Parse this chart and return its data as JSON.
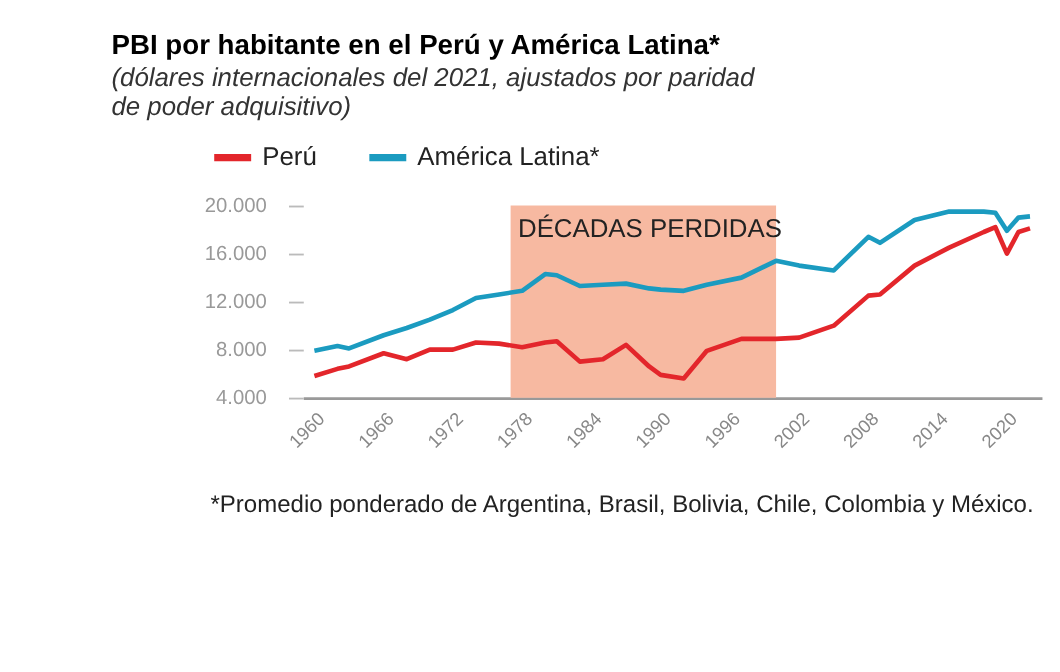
{
  "chart_data": {
    "type": "line",
    "title": "PBI por habitante en el Perú y América Latina*",
    "subtitle": [
      "(dólares internacionales del 2021, ajustados por paridad",
      "de poder adquisitivo)"
    ],
    "x": [
      1960,
      1962,
      1963,
      1966,
      1968,
      1970,
      1972,
      1974,
      1976,
      1978,
      1980,
      1981,
      1983,
      1985,
      1987,
      1989,
      1990,
      1992,
      1994,
      1997,
      2000,
      2002,
      2005,
      2008,
      2009,
      2012,
      2015,
      2018,
      2019,
      2020,
      2021,
      2022
    ],
    "series": [
      {
        "name": "Perú",
        "color": "#e3262b",
        "values": [
          5800,
          6400,
          6600,
          7700,
          7200,
          8000,
          8000,
          8600,
          8500,
          8200,
          8600,
          8700,
          7000,
          7200,
          8400,
          6600,
          5900,
          5600,
          7900,
          8900,
          8900,
          9000,
          10000,
          12500,
          12600,
          15000,
          16500,
          17800,
          18200,
          16000,
          17800,
          18100
        ]
      },
      {
        "name": "América Latina*",
        "color": "#1b9bc0",
        "values": [
          7900,
          8300,
          8100,
          9200,
          9800,
          10500,
          11300,
          12300,
          12600,
          12900,
          14300,
          14200,
          13300,
          13400,
          13500,
          13100,
          13000,
          12900,
          13400,
          14000,
          15400,
          15000,
          14600,
          17400,
          16900,
          18800,
          19500,
          19500,
          19400,
          17900,
          19000,
          19100
        ]
      }
    ],
    "xlim": [
      1959,
      2023
    ],
    "xticks": [
      1960,
      1966,
      1972,
      1978,
      1984,
      1990,
      1996,
      2002,
      2008,
      2014,
      2020
    ],
    "ylim": [
      4000,
      20000
    ],
    "yticks": [
      {
        "value": 4000,
        "label": "4.000"
      },
      {
        "value": 8000,
        "label": "8.000"
      },
      {
        "value": 12000,
        "label": "12.000"
      },
      {
        "value": 16000,
        "label": "16.000"
      },
      {
        "value": 20000,
        "label": "20.000"
      }
    ],
    "bands": [
      {
        "axis": "x",
        "from": 1977,
        "to": 2000,
        "label": "DÉCADAS PERDIDAS",
        "color": "#f7b9a1"
      }
    ],
    "grid": false,
    "legend": "top left",
    "line_style": "solid",
    "marker": "none",
    "annotations": [
      "*Promedio ponderado de Argentina, Brasil, Bolivia, Chile, Colombia y México."
    ]
  }
}
